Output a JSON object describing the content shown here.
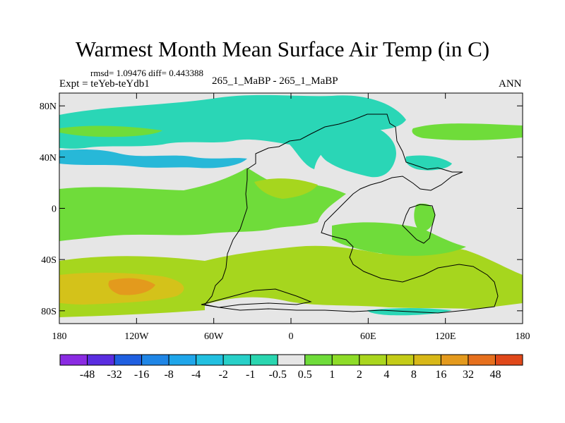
{
  "title": "Warmest Month Mean Surface Air Temp (in C)",
  "stats": "rmsd= 1.09476 diff= 0.443388",
  "expt": "Expt = teYeb-teYdb1",
  "center_label": "265_1_MaBP - 265_1_MaBP",
  "season": "ANN",
  "colors": {
    "neutral": "#e6e6e6",
    "cool_1": "#2ad6b6",
    "cool_2": "#27b8d8",
    "warm_1": "#6fdc3a",
    "warm_2": "#a6d61e",
    "warm_3": "#d4c21a",
    "warm_4": "#e39a1d"
  },
  "axes": {
    "x_ticks": [
      {
        "value": -180,
        "label": "180"
      },
      {
        "value": -120,
        "label": "120W"
      },
      {
        "value": -60,
        "label": "60W"
      },
      {
        "value": 0,
        "label": "0"
      },
      {
        "value": 60,
        "label": "60E"
      },
      {
        "value": 120,
        "label": "120E"
      },
      {
        "value": 180,
        "label": "180"
      }
    ],
    "y_ticks": [
      {
        "value": 80,
        "label": "80N"
      },
      {
        "value": 40,
        "label": "40N"
      },
      {
        "value": 0,
        "label": "0"
      },
      {
        "value": -40,
        "label": "40S"
      },
      {
        "value": -80,
        "label": "80S"
      }
    ]
  },
  "colorbar": {
    "colors": [
      "#8a2be2",
      "#5a2de0",
      "#1f5fe0",
      "#1f86e6",
      "#1fa6ea",
      "#22c0e0",
      "#28d0c8",
      "#2ad6b0",
      "#e6e6e6",
      "#6fdc3a",
      "#8edc28",
      "#aad61e",
      "#c4cc18",
      "#d8b818",
      "#e49a1d",
      "#e6701e",
      "#e0481a"
    ],
    "labels": [
      "-48",
      "-32",
      "-16",
      "-8",
      "-4",
      "-2",
      "-1",
      "-0.5",
      "0.5",
      "1",
      "2",
      "4",
      "8",
      "16",
      "32",
      "48"
    ]
  }
}
